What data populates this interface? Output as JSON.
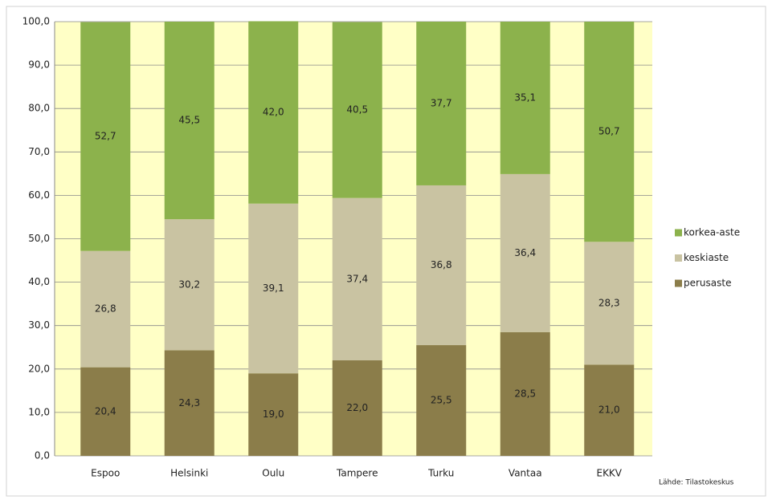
{
  "chart_data": {
    "type": "stacked_bar",
    "categories": [
      "Espoo",
      "Helsinki",
      "Oulu",
      "Tampere",
      "Turku",
      "Vantaa",
      "EKKV"
    ],
    "series": [
      {
        "name": "perusaste",
        "color": "#8b7d4a",
        "values": [
          20.4,
          24.3,
          19.0,
          22.0,
          25.5,
          28.5,
          21.0
        ],
        "value_labels": [
          "20,4",
          "24,3",
          "19,0",
          "22,0",
          "25,5",
          "28,5",
          "21,0"
        ]
      },
      {
        "name": "keskiaste",
        "color": "#c9c3a2",
        "values": [
          26.8,
          30.2,
          39.1,
          37.4,
          36.8,
          36.4,
          28.3
        ],
        "value_labels": [
          "26,8",
          "30,2",
          "39,1",
          "37,4",
          "36,8",
          "36,4",
          "28,3"
        ]
      },
      {
        "name": "korkea-aste",
        "color": "#8cb24c",
        "values": [
          52.7,
          45.5,
          42.0,
          40.5,
          37.7,
          35.1,
          50.7
        ],
        "value_labels": [
          "52,7",
          "45,5",
          "42,0",
          "40,5",
          "37,7",
          "35,1",
          "50,7"
        ]
      }
    ],
    "ylim": [
      0,
      100
    ],
    "yticks": [
      {
        "value": 0,
        "label": "0,0"
      },
      {
        "value": 10,
        "label": "10,0"
      },
      {
        "value": 20,
        "label": "20,0"
      },
      {
        "value": 30,
        "label": "30,0"
      },
      {
        "value": 40,
        "label": "40,0"
      },
      {
        "value": 50,
        "label": "50,0"
      },
      {
        "value": 60,
        "label": "60,0"
      },
      {
        "value": 70,
        "label": "70,0"
      },
      {
        "value": 80,
        "label": "80,0"
      },
      {
        "value": 90,
        "label": "90,0"
      },
      {
        "value": 100,
        "label": "100,0"
      }
    ],
    "grid": true,
    "legend": "right",
    "background": "#ffffc6",
    "source": "Lähde: Tilastokeskus"
  }
}
